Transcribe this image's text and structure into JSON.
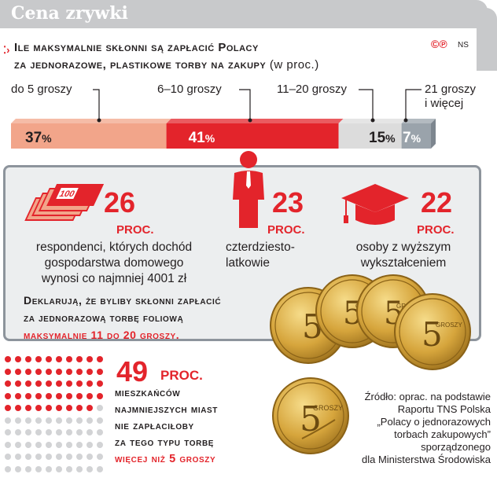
{
  "header": {
    "title": "Cena zrywki"
  },
  "question": {
    "line1": "Ile maksymalnie skłonni są zapłacić Polacy",
    "line2": "za jednorazowe, plastikowe torby na zakupy",
    "unit": "(w proc.)"
  },
  "credit": {
    "logo": "©℗",
    "tag": "NS"
  },
  "chart_data": {
    "type": "bar",
    "orientation": "stacked-horizontal",
    "title": "Ile maksymalnie skłonni są zapłacić Polacy za jednorazowe, plastikowe torby na zakupy (w proc.)",
    "categories": [
      "do 5 groszy",
      "6–10 groszy",
      "11–20 groszy",
      "21 groszy i więcej"
    ],
    "values": [
      37,
      41,
      15,
      7
    ],
    "value_suffix": "%",
    "colors": [
      "#f2a58a",
      "#e3242b",
      "#dcdcdc",
      "#9aa3ab"
    ],
    "category_lines": [
      [
        "do 5 groszy"
      ],
      [
        "6–10 groszy"
      ],
      [
        "11–20 groszy"
      ],
      [
        "21 groszy",
        "i więcej"
      ]
    ]
  },
  "stats": [
    {
      "value": "26",
      "unit": "PROC.",
      "icon": "banknotes-icon",
      "lines": [
        "respondenci, których dochód",
        "gospodarstwa domowego",
        "wynosi co najmniej 4001 zł"
      ]
    },
    {
      "value": "23",
      "unit": "PROC.",
      "icon": "person-icon",
      "lines": [
        "czterdziesto-",
        "latkowie"
      ]
    },
    {
      "value": "22",
      "unit": "PROC.",
      "icon": "graduation-cap-icon",
      "lines": [
        "osoby z wyższym",
        "wykształceniem"
      ]
    }
  ],
  "declaration": {
    "line1": "Deklarują, że byliby skłonni zapłacić",
    "line2": "za jednorazową torbę foliową",
    "line3": "maksymalnie 11 do 20 groszy."
  },
  "coins": {
    "denomination": "5",
    "word": "GROSZY",
    "icon": "coin-icon"
  },
  "small_towns": {
    "value": "49",
    "unit": "PROC.",
    "dot_ratio": 0.49,
    "dot_colors": {
      "filled": "#e3242b",
      "empty": "#d2d3d5"
    },
    "lines": [
      "mieszkańców",
      "najmniejszych miast",
      "nie zapłaciłoby",
      "za tego typu torbę"
    ],
    "highlight": "więcej niż 5 groszy"
  },
  "source": {
    "lines": [
      "Źródło: oprac. na podstawie",
      "Raportu TNS Polska",
      "„Polacy o jednorazowych",
      "torbach zakupowych”",
      "sporządzonego",
      "dla Ministerstwa Środowiska"
    ]
  }
}
